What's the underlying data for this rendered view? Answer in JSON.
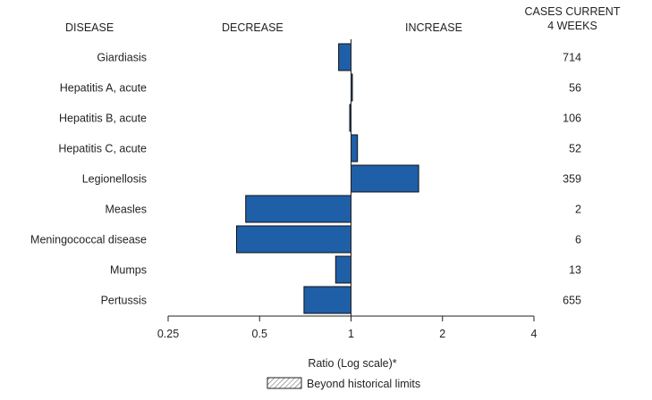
{
  "chart_data": {
    "type": "bar",
    "orientation": "horizontal",
    "headers": {
      "disease": "DISEASE",
      "decrease": "DECREASE",
      "increase": "INCREASE",
      "cases_line1": "CASES CURRENT",
      "cases_line2": "4 WEEKS"
    },
    "categories": [
      "Giardiasis",
      "Hepatitis A, acute",
      "Hepatitis B, acute",
      "Hepatitis C, acute",
      "Legionellosis",
      "Measles",
      "Meningococcal disease",
      "Mumps",
      "Pertussis"
    ],
    "values": [
      0.91,
      1.01,
      0.99,
      1.05,
      1.67,
      0.45,
      0.42,
      0.89,
      0.7
    ],
    "cases": [
      714,
      56,
      106,
      52,
      359,
      2,
      6,
      13,
      655
    ],
    "xlabel": "Ratio (Log scale)*",
    "xscale": "log",
    "xlim": [
      0.25,
      4
    ],
    "xticks": [
      0.25,
      0.5,
      1,
      2,
      4
    ],
    "xtick_labels": [
      "0.25",
      "0.5",
      "1",
      "2",
      "4"
    ],
    "baseline": 1,
    "legend": {
      "label": "Beyond historical limits",
      "placement": "bottom-center"
    },
    "colors": {
      "bar_fill": "#1f5fa8",
      "bar_stroke": "#111111",
      "text": "#231f20"
    },
    "grid": false
  }
}
